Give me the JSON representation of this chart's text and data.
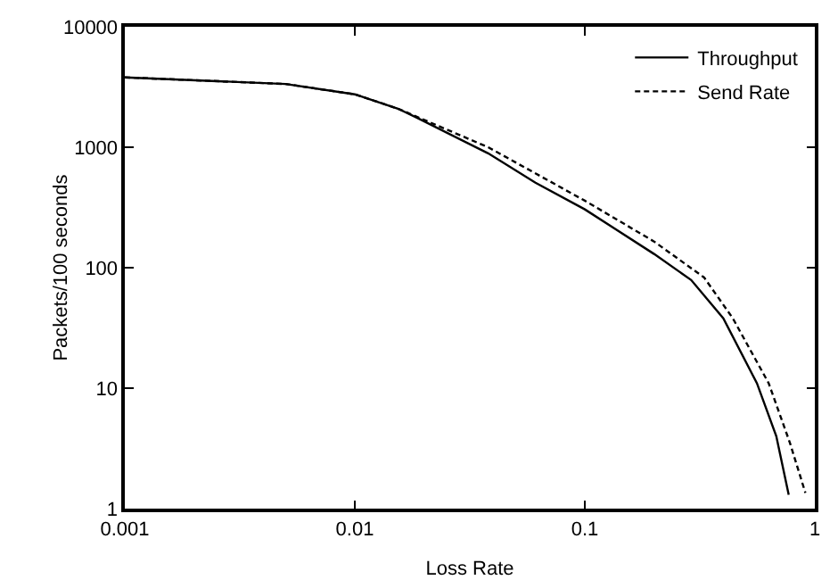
{
  "chart_data": {
    "type": "line",
    "xlabel": "Loss Rate",
    "ylabel": "Packets/100 seconds",
    "log": "xy",
    "xlim": [
      0.001,
      1
    ],
    "ylim": [
      1,
      10000
    ],
    "xticks": [
      0.001,
      0.01,
      0.1,
      1
    ],
    "yticks": [
      1,
      10,
      100,
      1000,
      10000
    ],
    "grid": false,
    "legend": "top right",
    "marker": "none",
    "series": [
      {
        "name": "Throughput",
        "color": "#000000",
        "line_style": "solid",
        "x": [
          0.001,
          0.005,
          0.01,
          0.0154,
          0.0186,
          0.038,
          0.061,
          0.1,
          0.2,
          0.29,
          0.4,
          0.56,
          0.68,
          0.77
        ],
        "values": [
          3800,
          3350,
          2750,
          2090,
          1760,
          890,
          508,
          305,
          130,
          79,
          38,
          11,
          4,
          1.3
        ]
      },
      {
        "name": "Send Rate",
        "color": "#000000",
        "line_style": "dashed",
        "x": [
          0.001,
          0.005,
          0.01,
          0.0154,
          0.038,
          0.1,
          0.2,
          0.33,
          0.44,
          0.63,
          0.78,
          0.91
        ],
        "values": [
          3800,
          3350,
          2750,
          2090,
          1000,
          360,
          165,
          83,
          38,
          11,
          3.5,
          1.35
        ]
      }
    ]
  }
}
